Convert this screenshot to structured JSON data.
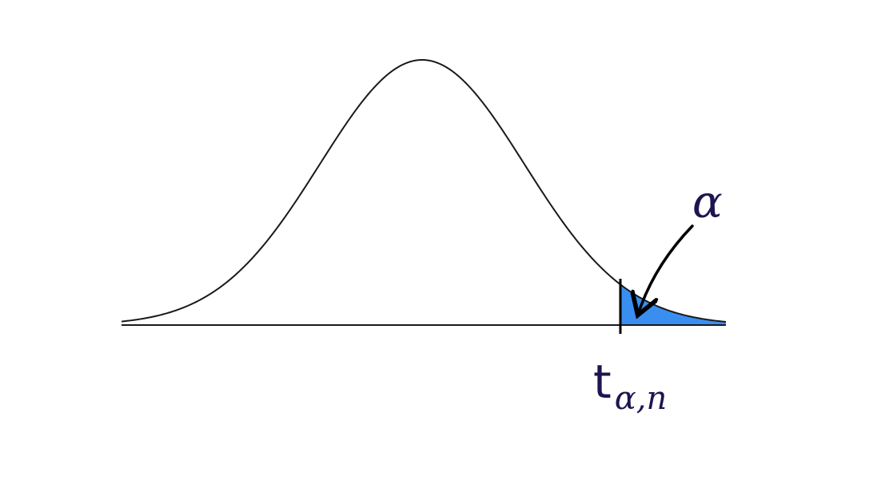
{
  "diagram": {
    "alpha_label": "α",
    "critical_value": {
      "base": "t",
      "subscript": "α,n"
    }
  },
  "colors": {
    "curve": "#1a1a1a",
    "axis": "#1a1a1a",
    "tail_fill": "#3a8ef0",
    "label": "#1d1550"
  }
}
